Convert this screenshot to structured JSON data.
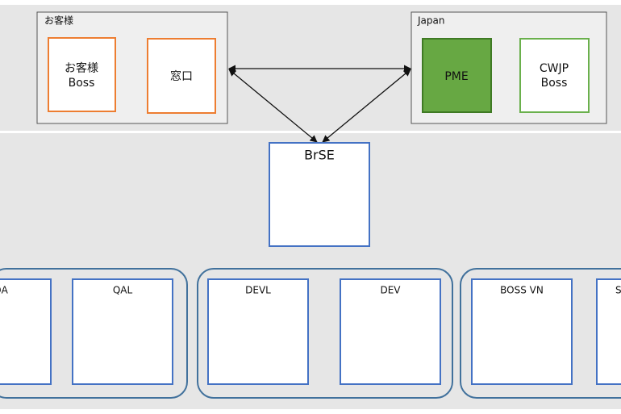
{
  "top": {
    "customer": {
      "label": "お客様",
      "boxes": [
        {
          "lines": [
            "お客様",
            "Boss"
          ]
        },
        {
          "lines": [
            "窓口"
          ]
        }
      ]
    },
    "japan": {
      "label": "Japan",
      "boxes": [
        {
          "lines": [
            "PME"
          ]
        },
        {
          "lines": [
            "CWJP",
            "Boss"
          ]
        }
      ]
    }
  },
  "brse": {
    "label": "BrSE"
  },
  "teams": [
    {
      "boxes": [
        "QA",
        "QAL"
      ]
    },
    {
      "boxes": [
        "DEVL",
        "DEV"
      ]
    },
    {
      "boxes": [
        "BOSS VN",
        "S"
      ]
    }
  ]
}
